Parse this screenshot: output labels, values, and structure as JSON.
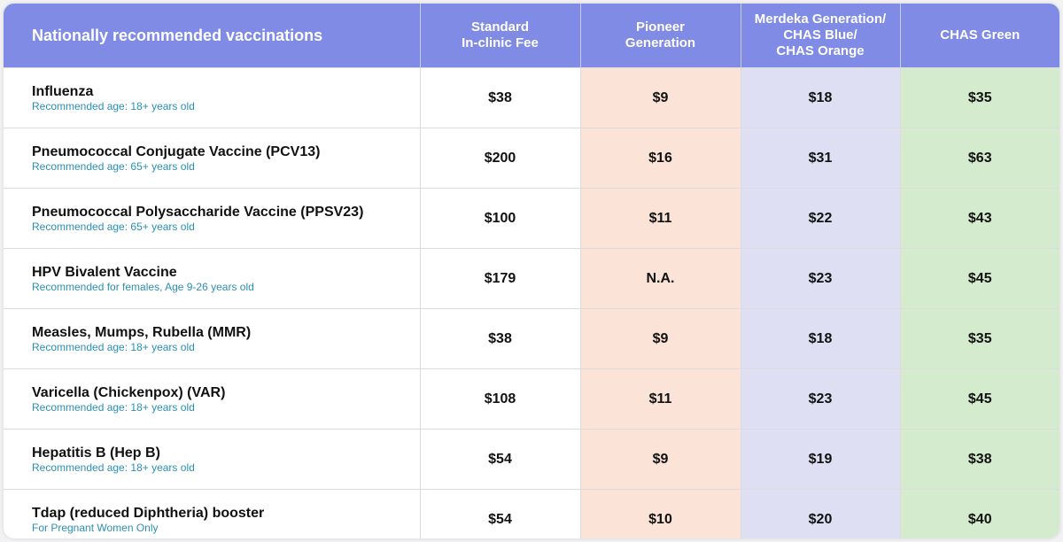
{
  "header": {
    "name": "Nationally recommended vaccinations",
    "standard": [
      "Standard",
      "In-clinic Fee"
    ],
    "pioneer": [
      "Pioneer",
      "Generation"
    ],
    "merdeka": [
      "Merdeka Generation/",
      "CHAS Blue/",
      "CHAS Orange"
    ],
    "green": [
      "CHAS Green"
    ]
  },
  "colors": {
    "header_bg": "#7f8be4",
    "pioneer_bg": "#fbe3d7",
    "merdeka_bg": "#dedff3",
    "green_bg": "#d4ebcd",
    "note_text": "#2b8fb5"
  },
  "rows": [
    {
      "name": "Influenza",
      "note": "Recommended age: 18+ years old",
      "standard": "$38",
      "pioneer": "$9",
      "merdeka": "$18",
      "green": "$35"
    },
    {
      "name": "Pneumococcal Conjugate Vaccine (PCV13)",
      "note": "Recommended age: 65+ years old",
      "standard": "$200",
      "pioneer": "$16",
      "merdeka": "$31",
      "green": "$63"
    },
    {
      "name": "Pneumococcal Polysaccharide Vaccine (PPSV23)",
      "note": "Recommended age: 65+ years old",
      "standard": "$100",
      "pioneer": "$11",
      "merdeka": "$22",
      "green": "$43"
    },
    {
      "name": "HPV Bivalent Vaccine",
      "note": "Recommended for females, Age 9-26 years old",
      "standard": "$179",
      "pioneer": "N.A.",
      "merdeka": "$23",
      "green": "$45"
    },
    {
      "name": "Measles, Mumps, Rubella (MMR)",
      "note": "Recommended age: 18+ years old",
      "standard": "$38",
      "pioneer": "$9",
      "merdeka": "$18",
      "green": "$35"
    },
    {
      "name": "Varicella (Chickenpox) (VAR)",
      "note": "Recommended age: 18+ years old",
      "standard": "$108",
      "pioneer": "$11",
      "merdeka": "$23",
      "green": "$45"
    },
    {
      "name": "Hepatitis B (Hep B)",
      "note": "Recommended age: 18+ years old",
      "standard": "$54",
      "pioneer": "$9",
      "merdeka": "$19",
      "green": "$38"
    },
    {
      "name": "Tdap (reduced Diphtheria) booster",
      "note": "For Pregnant Women Only",
      "standard": "$54",
      "pioneer": "$10",
      "merdeka": "$20",
      "green": "$40"
    }
  ]
}
